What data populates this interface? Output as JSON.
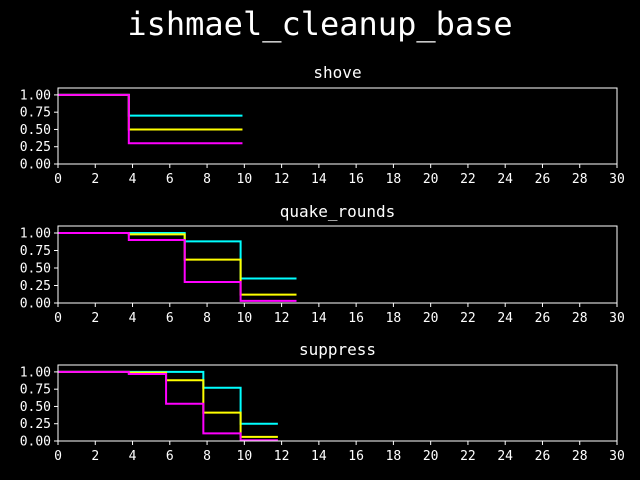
{
  "figure_title": "ishmael_cleanup_base",
  "colors": {
    "background": "#000000",
    "axes": "#ffffff",
    "text": "#ffffff"
  },
  "chart_data": [
    {
      "type": "line",
      "step": "post",
      "title": "shove",
      "xlim": [
        0,
        30
      ],
      "ylim": [
        0,
        1.1
      ],
      "xticks": [
        0,
        2,
        4,
        6,
        8,
        10,
        12,
        14,
        16,
        18,
        20,
        22,
        24,
        26,
        28,
        30
      ],
      "xtick_labels": [
        "0",
        "2",
        "4",
        "6",
        "8",
        "10",
        "12",
        "14",
        "16",
        "18",
        "20",
        "22",
        "24",
        "26",
        "28",
        "30"
      ],
      "yticks": [
        0,
        0.25,
        0.5,
        0.75,
        1.0
      ],
      "ytick_labels": [
        "0.00",
        "0.25",
        "0.50",
        "0.75",
        "1.00"
      ],
      "series": [
        {
          "color": "#00ffff",
          "x": [
            0,
            3.8,
            9.9
          ],
          "y": [
            1.0,
            0.7,
            0.7
          ]
        },
        {
          "color": "#ffff00",
          "x": [
            0,
            3.8,
            9.9
          ],
          "y": [
            1.0,
            0.5,
            0.5
          ]
        },
        {
          "color": "#ff00ff",
          "x": [
            0,
            3.8,
            9.9
          ],
          "y": [
            1.0,
            0.3,
            0.3
          ]
        }
      ]
    },
    {
      "type": "line",
      "step": "post",
      "title": "quake_rounds",
      "xlim": [
        0,
        30
      ],
      "ylim": [
        0,
        1.1
      ],
      "xticks": [
        0,
        2,
        4,
        6,
        8,
        10,
        12,
        14,
        16,
        18,
        20,
        22,
        24,
        26,
        28,
        30
      ],
      "xtick_labels": [
        "0",
        "2",
        "4",
        "6",
        "8",
        "10",
        "12",
        "14",
        "16",
        "18",
        "20",
        "22",
        "24",
        "26",
        "28",
        "30"
      ],
      "yticks": [
        0,
        0.25,
        0.5,
        0.75,
        1.0
      ],
      "ytick_labels": [
        "0.00",
        "0.25",
        "0.50",
        "0.75",
        "1.00"
      ],
      "series": [
        {
          "color": "#00ffff",
          "x": [
            0,
            3.8,
            6.8,
            9.8,
            12.8
          ],
          "y": [
            1.0,
            1.0,
            0.88,
            0.35,
            0.35
          ]
        },
        {
          "color": "#ffff00",
          "x": [
            0,
            3.8,
            6.8,
            9.8,
            12.8
          ],
          "y": [
            1.0,
            0.98,
            0.62,
            0.12,
            0.12
          ]
        },
        {
          "color": "#ff00ff",
          "x": [
            0,
            3.8,
            6.8,
            9.8,
            12.8
          ],
          "y": [
            1.0,
            0.9,
            0.3,
            0.03,
            0.03
          ]
        }
      ]
    },
    {
      "type": "line",
      "step": "post",
      "title": "suppress",
      "xlim": [
        0,
        30
      ],
      "ylim": [
        0,
        1.1
      ],
      "xticks": [
        0,
        2,
        4,
        6,
        8,
        10,
        12,
        14,
        16,
        18,
        20,
        22,
        24,
        26,
        28,
        30
      ],
      "xtick_labels": [
        "0",
        "2",
        "4",
        "6",
        "8",
        "10",
        "12",
        "14",
        "16",
        "18",
        "20",
        "22",
        "24",
        "26",
        "28",
        "30"
      ],
      "yticks": [
        0,
        0.25,
        0.5,
        0.75,
        1.0
      ],
      "ytick_labels": [
        "0.00",
        "0.25",
        "0.50",
        "0.75",
        "1.00"
      ],
      "series": [
        {
          "color": "#00ffff",
          "x": [
            0,
            3.8,
            5.8,
            7.8,
            9.8,
            11.8
          ],
          "y": [
            1.0,
            1.0,
            1.0,
            0.77,
            0.25,
            0.25
          ]
        },
        {
          "color": "#ffff00",
          "x": [
            0,
            3.8,
            5.8,
            7.8,
            9.8,
            11.8
          ],
          "y": [
            1.0,
            0.99,
            0.88,
            0.41,
            0.06,
            0.06
          ]
        },
        {
          "color": "#ff00ff",
          "x": [
            0,
            3.8,
            5.8,
            7.8,
            9.8,
            11.8
          ],
          "y": [
            1.0,
            0.97,
            0.54,
            0.11,
            0.01,
            0.01
          ]
        }
      ]
    }
  ]
}
